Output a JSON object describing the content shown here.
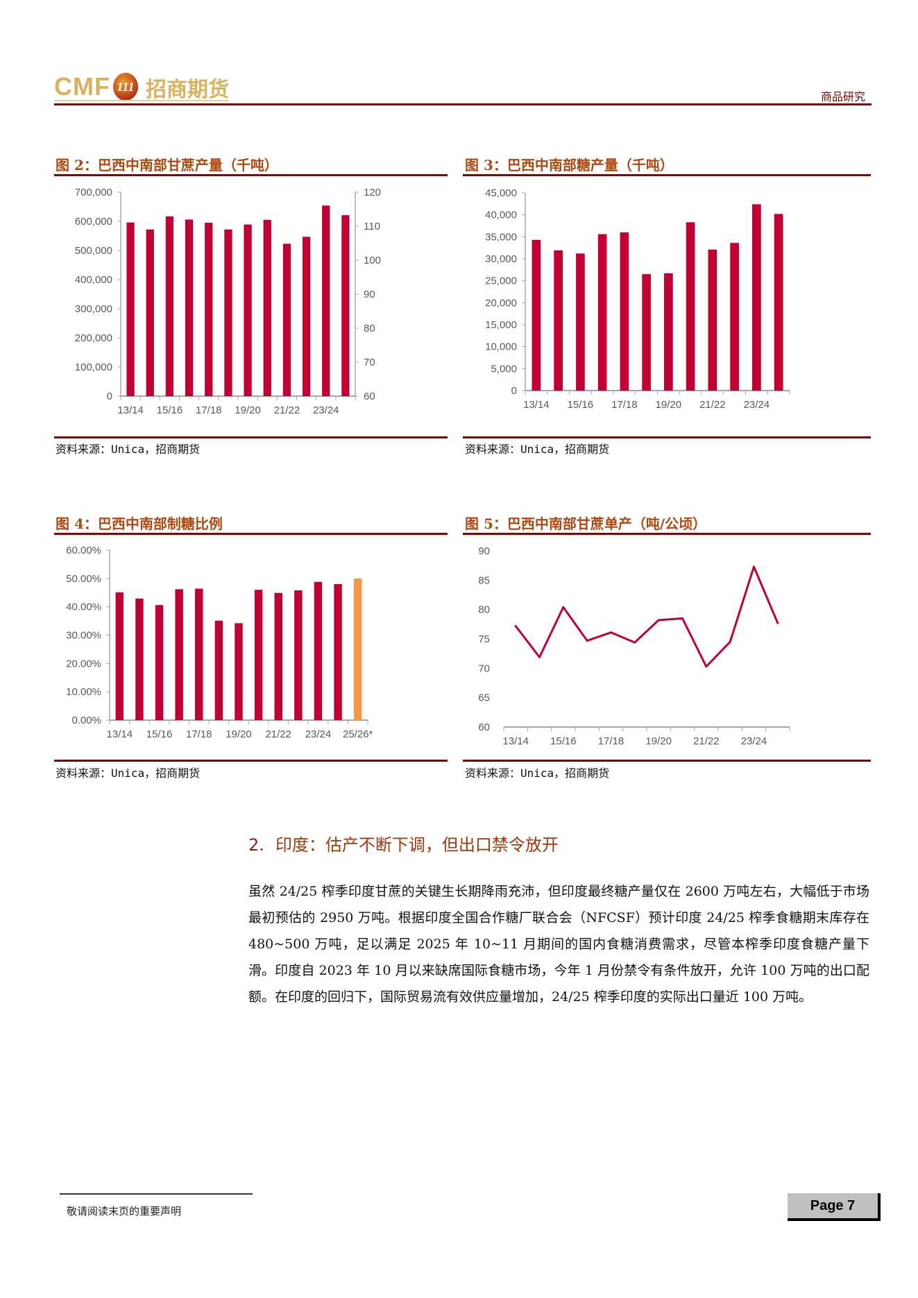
{
  "header": {
    "logo_text": "CMF",
    "logo_cn": "招商期货",
    "logo_badge": "111",
    "tag": "商品研究"
  },
  "colors": {
    "bar": "#c00032",
    "highlight": "#f79646",
    "rule": "#8b0000",
    "title": "#b0470e"
  },
  "figures": [
    {
      "title": "图 2：巴西中南部甘蔗产量（千吨）",
      "source": "资料来源：Unica，招商期货"
    },
    {
      "title": "图 3：巴西中南部糖产量（千吨）",
      "source": "资料来源：Unica，招商期货"
    },
    {
      "title": "图 4：巴西中南部制糖比例",
      "source": "资料来源：Unica，招商期货"
    },
    {
      "title": "图 5：巴西中南部甘蔗单产（吨/公顷）",
      "source": "资料来源：Unica，招商期货"
    }
  ],
  "chart_data": [
    {
      "type": "bar",
      "title": "图 2：巴西中南部甘蔗产量（千吨）",
      "categories": [
        "13/14",
        "14/15",
        "15/16",
        "16/17",
        "17/18",
        "18/19",
        "19/20",
        "20/21",
        "21/22",
        "22/23",
        "23/24",
        "24/25"
      ],
      "tick_labels": [
        "13/14",
        "15/16",
        "17/18",
        "19/20",
        "21/22",
        "23/24"
      ],
      "values": [
        596000,
        572000,
        617000,
        606000,
        595000,
        572000,
        589000,
        605000,
        523000,
        547000,
        654000,
        621000
      ],
      "ylim": [
        0,
        700000
      ],
      "yticks": [
        "0",
        "100,000",
        "200,000",
        "300,000",
        "400,000",
        "500,000",
        "600,000",
        "700,000"
      ],
      "y2lim": [
        60,
        120
      ],
      "y2ticks": [
        "60",
        "70",
        "80",
        "90",
        "100",
        "110",
        "120"
      ]
    },
    {
      "type": "bar",
      "title": "图 3：巴西中南部糖产量（千吨）",
      "categories": [
        "13/14",
        "14/15",
        "15/16",
        "16/17",
        "17/18",
        "18/19",
        "19/20",
        "20/21",
        "21/22",
        "22/23",
        "23/24",
        "24/25"
      ],
      "tick_labels": [
        "13/14",
        "15/16",
        "17/18",
        "19/20",
        "21/22",
        "23/24"
      ],
      "values": [
        34300,
        31900,
        31200,
        35600,
        36000,
        26500,
        26700,
        38300,
        32100,
        33600,
        42400,
        40200
      ],
      "ylim": [
        0,
        45000
      ],
      "yticks": [
        "0",
        "5,000",
        "10,000",
        "15,000",
        "20,000",
        "25,000",
        "30,000",
        "35,000",
        "40,000",
        "45,000"
      ]
    },
    {
      "type": "bar",
      "title": "图 4：巴西中南部制糖比例",
      "categories": [
        "13/14",
        "14/15",
        "15/16",
        "16/17",
        "17/18",
        "18/19",
        "19/20",
        "20/21",
        "21/22",
        "22/23",
        "23/24",
        "24/25",
        "25/26*"
      ],
      "tick_labels": [
        "13/14",
        "15/16",
        "17/18",
        "19/20",
        "21/22",
        "23/24",
        "25/26*"
      ],
      "values": [
        45.1,
        42.9,
        40.6,
        46.2,
        46.4,
        35.1,
        34.2,
        46.0,
        44.9,
        45.8,
        48.8,
        48.0,
        50.0
      ],
      "highlight_last": true,
      "ylim": [
        0,
        60
      ],
      "yticks": [
        "0.00%",
        "10.00%",
        "20.00%",
        "30.00%",
        "40.00%",
        "50.00%",
        "60.00%"
      ]
    },
    {
      "type": "line",
      "title": "图 5：巴西中南部甘蔗单产（吨/公顷）",
      "categories": [
        "13/14",
        "14/15",
        "15/16",
        "16/17",
        "17/18",
        "18/19",
        "19/20",
        "20/21",
        "21/22",
        "22/23",
        "23/24",
        "24/25"
      ],
      "tick_labels": [
        "13/14",
        "15/16",
        "17/18",
        "19/20",
        "21/22",
        "23/24"
      ],
      "values": [
        77.2,
        71.9,
        80.4,
        74.7,
        76.1,
        74.4,
        78.2,
        78.5,
        70.3,
        74.5,
        87.3,
        77.7
      ],
      "ylim": [
        60,
        90
      ],
      "yticks": [
        "60",
        "65",
        "70",
        "75",
        "80",
        "85",
        "90"
      ]
    }
  ],
  "section": {
    "number": "2.",
    "heading": "印度：估产不断下调，但出口禁令放开",
    "paragraph": "虽然 24/25 榨季印度甘蔗的关键生长期降雨充沛，但印度最终糖产量仅在 2600 万吨左右，大幅低于市场最初预估的 2950 万吨。根据印度全国合作糖厂联合会（NFCSF）预计印度 24/25 榨季食糖期末库存在 480~500 万吨，足以满足 2025 年 10~11 月期间的国内食糖消费需求，尽管本榨季印度食糖产量下滑。印度自 2023 年 10 月以来缺席国际食糖市场，今年 1 月份禁令有条件放开，允许 100 万吨的出口配额。在印度的回归下，国际贸易流有效供应量增加，24/25 榨季印度的实际出口量近 100 万吨。"
  },
  "footer": {
    "disclaimer": "敬请阅读末页的重要声明",
    "page": "Page 7"
  }
}
